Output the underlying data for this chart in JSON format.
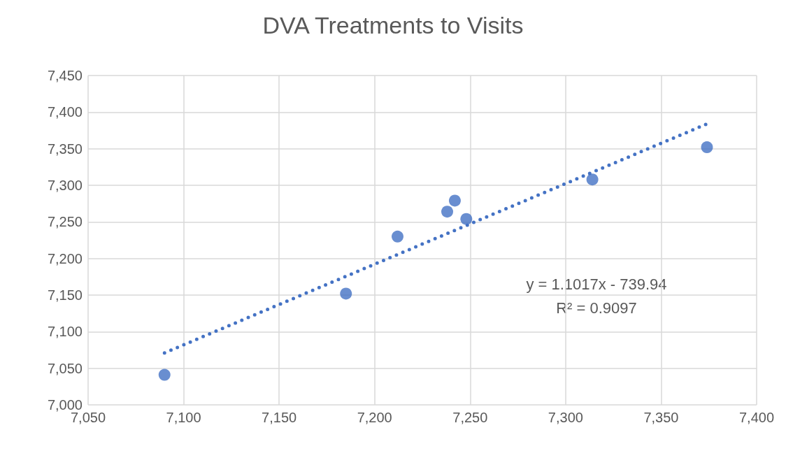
{
  "chart_data": {
    "type": "scatter",
    "title": "DVA Treatments to Visits",
    "series": [
      {
        "color": "#4472c4",
        "marker": "circle",
        "x": [
          7090,
          7185,
          7212,
          7238,
          7242,
          7248,
          7314,
          7374
        ],
        "values": [
          7041,
          7152,
          7230,
          7264,
          7279,
          7254,
          7308,
          7352
        ]
      },
      {
        "type": "line",
        "color": "#4472c4",
        "line_style": "dotted",
        "marker": "none",
        "x": [
          7090,
          7375
        ],
        "values": [
          7071,
          7385
        ]
      }
    ],
    "annotations": [
      "y = 1.1017x - 739.94",
      "R² = 0.9097"
    ],
    "xlim": [
      7050,
      7400
    ],
    "xticks": [
      {
        "value": 7050,
        "label": "7,050"
      },
      {
        "value": 7100,
        "label": "7,100"
      },
      {
        "value": 7150,
        "label": "7,150"
      },
      {
        "value": 7200,
        "label": "7,200"
      },
      {
        "value": 7250,
        "label": "7,250"
      },
      {
        "value": 7300,
        "label": "7,300"
      },
      {
        "value": 7350,
        "label": "7,350"
      },
      {
        "value": 7400,
        "label": "7,400"
      }
    ],
    "ylim": [
      7000,
      7450
    ],
    "yticks": [
      {
        "value": 7000,
        "label": "7,000"
      },
      {
        "value": 7050,
        "label": "7,050"
      },
      {
        "value": 7100,
        "label": "7,100"
      },
      {
        "value": 7150,
        "label": "7,150"
      },
      {
        "value": 7200,
        "label": "7,200"
      },
      {
        "value": 7250,
        "label": "7,250"
      },
      {
        "value": 7300,
        "label": "7,300"
      },
      {
        "value": 7350,
        "label": "7,350"
      },
      {
        "value": 7400,
        "label": "7,400"
      },
      {
        "value": 7450,
        "label": "7,450"
      }
    ],
    "grid": true
  }
}
